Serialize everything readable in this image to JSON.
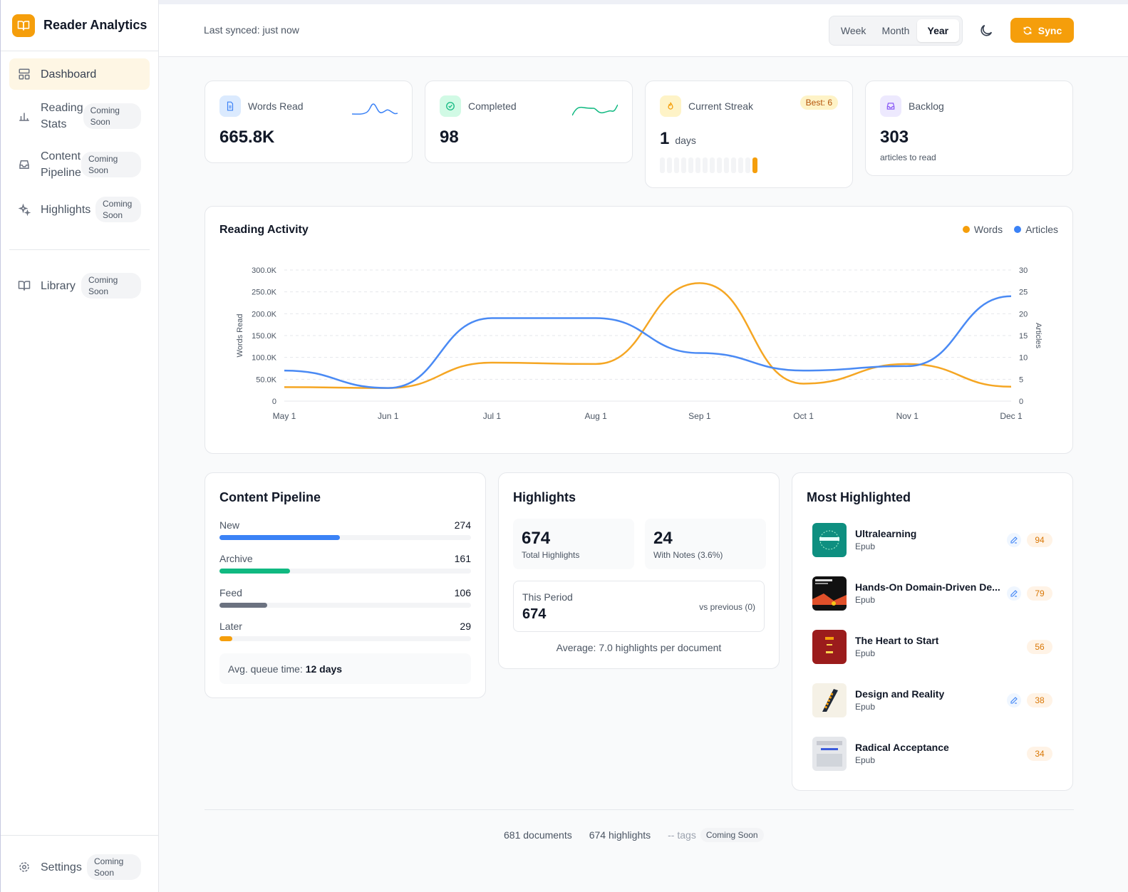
{
  "app": {
    "title": "Reader Analytics"
  },
  "sidebar": {
    "items": [
      {
        "label": "Dashboard",
        "badge": ""
      },
      {
        "label": "Reading Stats",
        "badge": "Coming Soon"
      },
      {
        "label": "Content Pipeline",
        "badge": "Coming Soon"
      },
      {
        "label": "Highlights",
        "badge": "Coming Soon"
      },
      {
        "label": "Library",
        "badge": "Coming Soon"
      }
    ],
    "settings": {
      "label": "Settings",
      "badge": "Coming Soon"
    }
  },
  "header": {
    "sync_status": "Last synced: just now",
    "periods": [
      "Week",
      "Month",
      "Year"
    ],
    "selected_period": "Year",
    "sync_label": "Sync"
  },
  "stats": {
    "words_read": {
      "label": "Words Read",
      "value": "665.8K"
    },
    "completed": {
      "label": "Completed",
      "value": "98"
    },
    "streak": {
      "label": "Current Streak",
      "value": "1",
      "unit": "days",
      "best": "Best: 6"
    },
    "backlog": {
      "label": "Backlog",
      "value": "303",
      "sub": "articles to read"
    }
  },
  "activity": {
    "title": "Reading Activity",
    "legend": [
      "Words",
      "Articles"
    ]
  },
  "chart_data": {
    "type": "line",
    "x": [
      "May 1",
      "Jun 1",
      "Jul 1",
      "Aug 1",
      "Sep 1",
      "Oct 1",
      "Nov 1",
      "Dec 1"
    ],
    "series": [
      {
        "name": "Words",
        "axis": "left",
        "color": "#f5a623",
        "values": [
          32000,
          30000,
          88000,
          85000,
          270000,
          40000,
          85000,
          33000
        ]
      },
      {
        "name": "Articles",
        "axis": "right",
        "color": "#4a8af4",
        "values": [
          7,
          3,
          19,
          19,
          11,
          7,
          8,
          24
        ]
      }
    ],
    "ylabel": "Words Read",
    "y2label": "Articles",
    "ylim": [
      0,
      300000
    ],
    "y2lim": [
      0,
      30
    ],
    "yticks": [
      "0",
      "50.0K",
      "100.0K",
      "150.0K",
      "200.0K",
      "250.0K",
      "300.0K"
    ],
    "y2ticks": [
      "0",
      "5",
      "10",
      "15",
      "20",
      "25",
      "30"
    ],
    "grid": true,
    "legend": "top-right"
  },
  "pipeline": {
    "title": "Content Pipeline",
    "rows": [
      {
        "label": "New",
        "value": "274",
        "fraction": 0.48,
        "color": "#3b82f6"
      },
      {
        "label": "Archive",
        "value": "161",
        "fraction": 0.28,
        "color": "#10b981"
      },
      {
        "label": "Feed",
        "value": "106",
        "fraction": 0.19,
        "color": "#6b7280"
      },
      {
        "label": "Later",
        "value": "29",
        "fraction": 0.05,
        "color": "#f59e0b"
      }
    ],
    "queue_label": "Avg. queue time:",
    "queue_value": "12 days"
  },
  "highlights": {
    "title": "Highlights",
    "total": "674",
    "total_label": "Total Highlights",
    "notes": "24",
    "notes_label": "With Notes (3.6%)",
    "period_label": "This Period",
    "period_value": "674",
    "vs_previous": "vs previous (0)",
    "average": "Average: 7.0 highlights per document"
  },
  "most_highlighted": {
    "title": "Most Highlighted",
    "items": [
      {
        "title": "Ultralearning",
        "type": "Epub",
        "count": "94",
        "has_notes": true,
        "cover": "#0e8f80"
      },
      {
        "title": "Hands-On Domain-Driven De...",
        "type": "Epub",
        "count": "79",
        "has_notes": true,
        "cover": "#1a1a1a"
      },
      {
        "title": "The Heart to Start",
        "type": "Epub",
        "count": "56",
        "has_notes": false,
        "cover": "#9b1c1c"
      },
      {
        "title": "Design and Reality",
        "type": "Epub",
        "count": "38",
        "has_notes": true,
        "cover": "#f5f1e6"
      },
      {
        "title": "Radical Acceptance",
        "type": "Epub",
        "count": "34",
        "has_notes": false,
        "cover": "#e5e7eb"
      }
    ]
  },
  "footer": {
    "documents": "681 documents",
    "highlights": "674 highlights",
    "tags": "-- tags",
    "tags_badge": "Coming Soon"
  }
}
